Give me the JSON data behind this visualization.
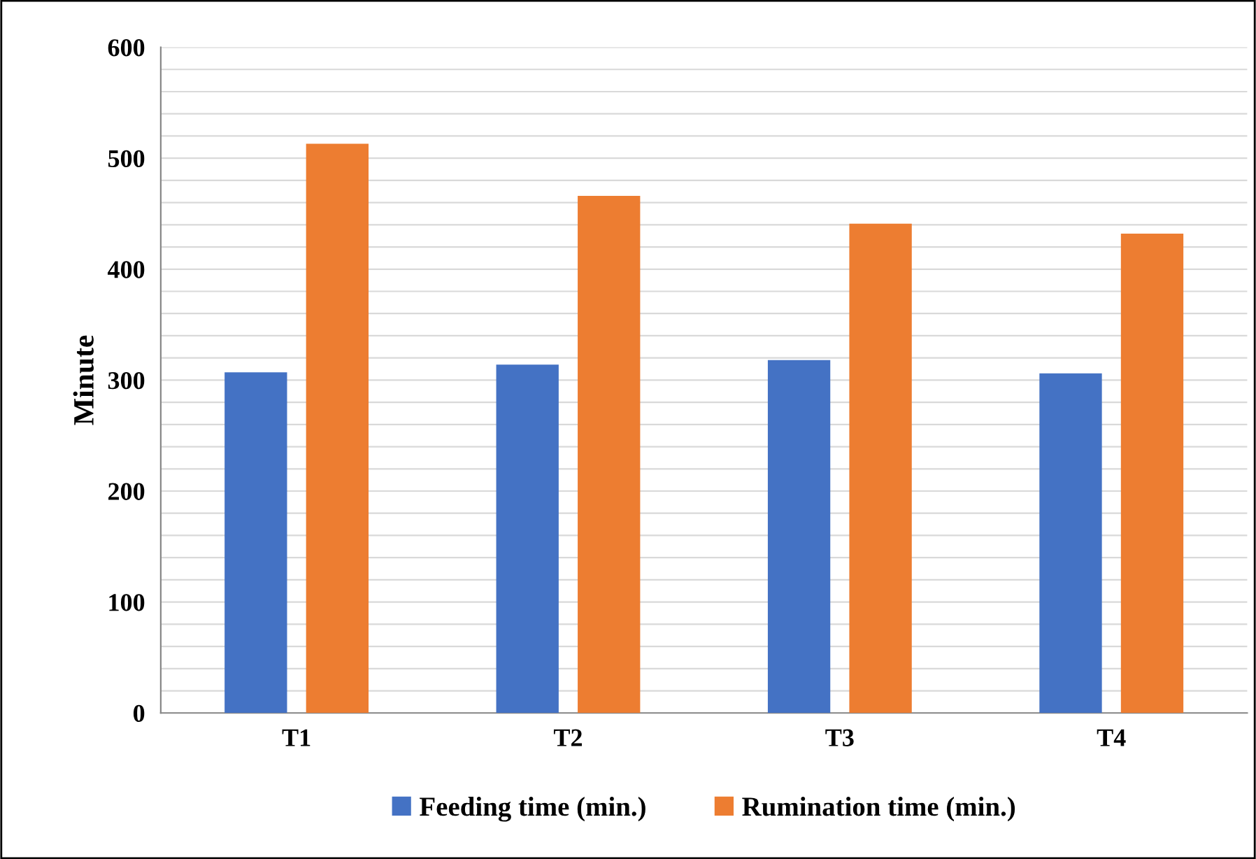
{
  "chart_data": {
    "type": "bar",
    "ylabel": "Minute",
    "categories": [
      "T1",
      "T2",
      "T3",
      "T4"
    ],
    "series": [
      {
        "name": "Feeding time (min.)",
        "color": "#4472c4",
        "values": [
          307,
          314,
          318,
          306
        ]
      },
      {
        "name": "Rumination time (min.)",
        "color": "#ed7d31",
        "values": [
          513,
          466,
          441,
          432
        ]
      }
    ],
    "ylim": [
      0,
      600
    ],
    "yticks": [
      0,
      {
        "value": 20,
        "label": null
      },
      {
        "value": 40,
        "label": null
      },
      {
        "value": 60,
        "label": null
      },
      {
        "value": 80,
        "label": null
      },
      100,
      {
        "value": 120,
        "label": null
      },
      {
        "value": 140,
        "label": null
      },
      {
        "value": 160,
        "label": null
      },
      {
        "value": 180,
        "label": null
      },
      200,
      {
        "value": 220,
        "label": null
      },
      {
        "value": 240,
        "label": null
      },
      {
        "value": 260,
        "label": null
      },
      {
        "value": 280,
        "label": null
      },
      300,
      {
        "value": 320,
        "label": null
      },
      {
        "value": 340,
        "label": null
      },
      {
        "value": 360,
        "label": null
      },
      {
        "value": 380,
        "label": null
      },
      400,
      {
        "value": 420,
        "label": null
      },
      {
        "value": 440,
        "label": null
      },
      {
        "value": 460,
        "label": null
      },
      {
        "value": 480,
        "label": null
      },
      500,
      {
        "value": 520,
        "label": null
      },
      {
        "value": 540,
        "label": null
      },
      {
        "value": 560,
        "label": null
      },
      {
        "value": 580,
        "label": null
      },
      600
    ],
    "grid": "y",
    "legend": "bottom"
  }
}
